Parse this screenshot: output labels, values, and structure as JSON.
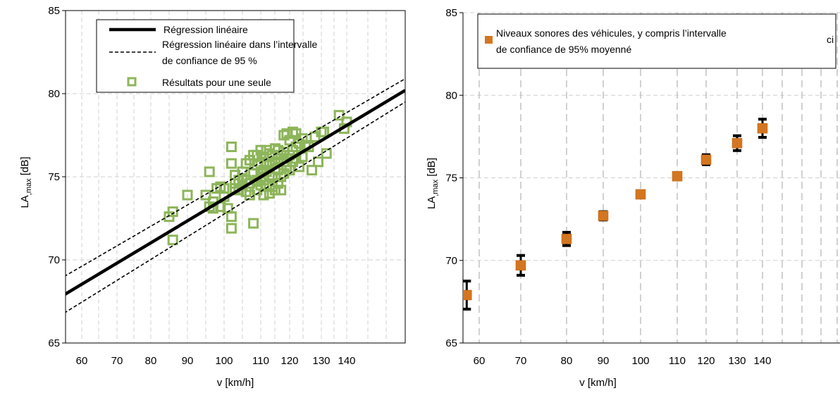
{
  "chart_data": [
    {
      "type": "scatter",
      "xlabel": "v [km/h]",
      "ylabel_main": "LA",
      "ylabel_sub": ",max",
      "ylabel_unit": " [dB]",
      "xlim": [
        55,
        150
      ],
      "ylim": [
        65,
        85
      ],
      "xticks": [
        60,
        70,
        80,
        90,
        100,
        110,
        120,
        130,
        140
      ],
      "yticks": [
        65,
        70,
        75,
        80,
        85
      ],
      "grid": "dashed",
      "legend_position": "top-left",
      "legend": [
        {
          "label": "Régression linéaire",
          "style": "thick-solid-line"
        },
        {
          "label": "Régression linéaire dans l’intervalle",
          "label2": "de confiance de 95 %",
          "style": "dashed-line"
        },
        {
          "label": "Résultats pour une seule",
          "style": "open-square-marker"
        }
      ],
      "regression": {
        "x": [
          55,
          150
        ],
        "y": [
          67.9,
          80.2
        ]
      },
      "confidence_upper": {
        "x": [
          55,
          150
        ],
        "y": [
          69.0,
          80.9
        ]
      },
      "confidence_lower": {
        "x": [
          55,
          150
        ],
        "y": [
          66.8,
          79.5
        ]
      },
      "points": {
        "x": [
          85,
          86,
          86,
          90,
          95,
          96,
          96,
          97,
          97,
          98,
          99,
          99,
          100,
          100,
          101,
          102,
          102,
          102,
          102,
          103,
          103,
          103,
          104,
          104,
          105,
          105,
          105,
          106,
          106,
          106,
          107,
          107,
          107,
          108,
          108,
          108,
          109,
          109,
          109,
          109,
          110,
          110,
          110,
          110,
          110,
          111,
          111,
          111,
          111,
          111,
          112,
          112,
          112,
          112,
          113,
          113,
          113,
          113,
          114,
          114,
          114,
          114,
          115,
          115,
          115,
          115,
          116,
          116,
          116,
          116,
          117,
          117,
          117,
          118,
          118,
          118,
          118,
          119,
          119,
          119,
          120,
          120,
          120,
          121,
          121,
          121,
          122,
          122,
          122,
          123,
          123,
          124,
          124,
          125,
          126,
          127,
          128,
          129,
          130,
          131,
          132,
          137,
          139,
          140
        ],
        "y": [
          72.6,
          72.9,
          71.2,
          73.9,
          73.9,
          75.3,
          73.2,
          73.5,
          73.1,
          74.3,
          74.4,
          73.2,
          73.8,
          74.3,
          73.1,
          76.8,
          75.8,
          72.6,
          71.9,
          74.6,
          74.3,
          75.1,
          74.8,
          74.2,
          74.5,
          75.3,
          74.9,
          75.8,
          74.8,
          74.1,
          76.0,
          74.6,
          73.9,
          76.3,
          75.2,
          72.2,
          76.3,
          74.8,
          75.7,
          74.2,
          75.8,
          74.9,
          76.6,
          75.2,
          74.5,
          75.4,
          76.2,
          74.8,
          73.9,
          75.0,
          76.6,
          75.3,
          74.5,
          75.9,
          76.4,
          75.1,
          74.0,
          75.7,
          76.3,
          75.0,
          74.4,
          75.8,
          76.7,
          75.5,
          74.2,
          75.9,
          76.1,
          75.4,
          74.6,
          76.6,
          76.3,
          75.0,
          74.2,
          77.5,
          75.9,
          75.2,
          76.5,
          77.6,
          76.1,
          75.6,
          77.2,
          76.3,
          75.4,
          77.7,
          76.6,
          75.9,
          77.6,
          76.8,
          76.1,
          77.0,
          75.6,
          77.3,
          76.2,
          76.9,
          76.8,
          75.4,
          77.4,
          75.9,
          77.7,
          77.7,
          76.4,
          78.7,
          77.9,
          78.3
        ]
      }
    },
    {
      "type": "scatter",
      "xlabel": "v [km/h]",
      "ylabel_main": "LA",
      "ylabel_sub": ",max",
      "ylabel_unit": " [dB]",
      "xlim": [
        55,
        150
      ],
      "ylim": [
        65,
        85
      ],
      "xticks": [
        60,
        70,
        80,
        90,
        100,
        110,
        120,
        130,
        140
      ],
      "yticks": [
        65,
        70,
        75,
        80,
        85
      ],
      "grid": "dashed",
      "legend_position": "top",
      "legend": [
        {
          "label": "Niveaux sonores des véhicules, y compris l’intervalle",
          "label2": "de confiance de 95% moyenné",
          "style": "filled-orange-square"
        }
      ],
      "legend_overflow_text": "ci",
      "points": {
        "x": [
          57,
          70,
          80,
          90,
          100,
          110,
          120,
          130,
          140
        ],
        "y": [
          67.9,
          69.7,
          71.3,
          72.7,
          74.0,
          75.1,
          76.1,
          77.1,
          78.0
        ],
        "err_low": [
          0.85,
          0.6,
          0.4,
          0.25,
          0.0,
          0.0,
          0.3,
          0.45,
          0.55
        ],
        "err_high": [
          0.85,
          0.6,
          0.4,
          0.25,
          0.0,
          0.0,
          0.3,
          0.45,
          0.55
        ]
      }
    }
  ],
  "colors": {
    "regression": "#000000",
    "scatter_marker": "#8db55a",
    "mean_marker": "#d4761f",
    "error_bar": "#000000",
    "grid": "#d0d0d0"
  }
}
